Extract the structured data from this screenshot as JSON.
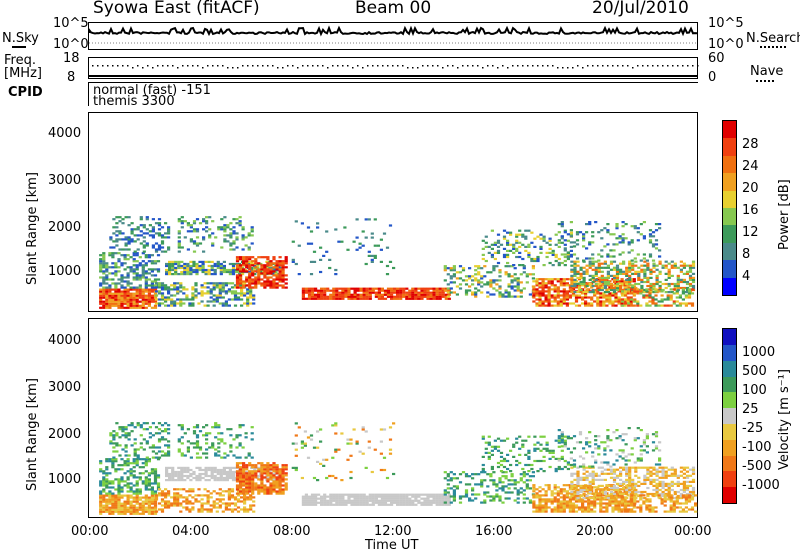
{
  "header": {
    "title": "Syowa East (fitACF)",
    "beam": "Beam 00",
    "date": "20/Jul/2010"
  },
  "params": {
    "nsky_label": "N.Sky",
    "nsky_ticks": [
      "10^5",
      "10^0"
    ],
    "nsearch_label": "N.Search",
    "nsearch_ticks": [
      "10^5",
      "10^0"
    ],
    "freq_label_line1": "Freq.",
    "freq_label_line2": "[MHz]",
    "freq_ticks": [
      "18",
      "8"
    ],
    "nave_label": "Nave",
    "nave_ticks": [
      "60",
      "0"
    ],
    "cpid_label": "CPID",
    "cpid_line1": "normal (fast) -151",
    "cpid_line2": "themis 3300"
  },
  "colors": {
    "power": [
      "#0000ff",
      "#2356c8",
      "#4a8a8a",
      "#3c9a5a",
      "#86c850",
      "#e8d030",
      "#f0a020",
      "#f07010",
      "#f04010",
      "#e00000"
    ],
    "velocity": [
      "#e00000",
      "#f04010",
      "#f07818",
      "#f0a020",
      "#e8c840",
      "#c8c8c8",
      "#7cd040",
      "#3c9a5a",
      "#2a8a9a",
      "#2356c8",
      "#1010c0"
    ]
  },
  "chart_data": [
    {
      "type": "heatmap",
      "name": "power",
      "xlabel": "",
      "ylabel": "Slant Range [km]",
      "ylim": [
        200,
        4600
      ],
      "xlim": [
        0,
        24
      ],
      "yticks": [
        "4000",
        "3000",
        "2000",
        "1000"
      ],
      "colorbar": {
        "label": "Power [dB]",
        "ticks": [
          "28",
          "24",
          "20",
          "16",
          "12",
          "8",
          "4"
        ]
      }
    },
    {
      "type": "heatmap",
      "name": "velocity",
      "xlabel": "Time UT",
      "ylabel": "Slant Range [km]",
      "ylim": [
        200,
        4600
      ],
      "xlim": [
        0,
        24
      ],
      "xticks": [
        "00:00",
        "04:00",
        "08:00",
        "12:00",
        "16:00",
        "20:00",
        "00:00"
      ],
      "yticks": [
        "4000",
        "3000",
        "2000",
        "1000"
      ],
      "colorbar": {
        "label": "Velocity [m s⁻¹]",
        "ticks": [
          "1000",
          "500",
          "100",
          "25",
          "-25",
          "-100",
          "-500",
          "-1000"
        ]
      }
    }
  ]
}
